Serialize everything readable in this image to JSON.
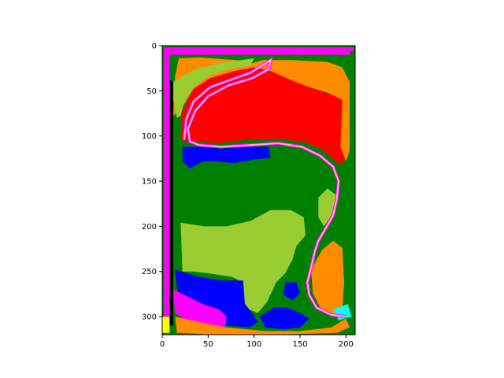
{
  "chart_data": {
    "type": "heatmap",
    "title": "",
    "xlabel": "",
    "ylabel": "",
    "xlim": [
      0,
      210
    ],
    "ylim": [
      320,
      0
    ],
    "x_ticks": [
      0,
      50,
      100,
      150,
      200
    ],
    "y_ticks": [
      0,
      50,
      100,
      150,
      200,
      250,
      300
    ],
    "grid": false,
    "colors": {
      "red": "#ff0000",
      "dark_green": "#008000",
      "yellow_green": "#9acd32",
      "orange": "#ff8c00",
      "blue": "#0000ff",
      "magenta": "#ff00ff",
      "cyan": "#00ffff",
      "black": "#000000",
      "yellow": "#ffff00",
      "pink": "#ffb6c1"
    },
    "regions": [
      {
        "label": "red",
        "polygon": [
          [
            20,
            102
          ],
          [
            22,
            72
          ],
          [
            34,
            48
          ],
          [
            52,
            36
          ],
          [
            78,
            28
          ],
          [
            100,
            24
          ],
          [
            118,
            27
          ],
          [
            140,
            36
          ],
          [
            158,
            45
          ],
          [
            178,
            52
          ],
          [
            196,
            58
          ],
          [
            203,
            68
          ],
          [
            202,
            124
          ],
          [
            193,
            132
          ],
          [
            176,
            116
          ],
          [
            156,
            107
          ],
          [
            128,
            103
          ],
          [
            92,
            104
          ],
          [
            62,
            108
          ],
          [
            40,
            106
          ],
          [
            24,
            106
          ]
        ]
      },
      {
        "label": "orange",
        "polygon": [
          [
            12,
            78
          ],
          [
            14,
            34
          ],
          [
            18,
            14
          ],
          [
            40,
            13
          ],
          [
            80,
            16
          ],
          [
            96,
            20
          ],
          [
            110,
            16
          ],
          [
            140,
            16
          ],
          [
            180,
            18
          ],
          [
            196,
            24
          ],
          [
            204,
            40
          ],
          [
            204,
            116
          ],
          [
            200,
            128
          ],
          [
            194,
            112
          ],
          [
            196,
            60
          ],
          [
            180,
            52
          ],
          [
            160,
            46
          ],
          [
            140,
            38
          ],
          [
            118,
            28
          ],
          [
            100,
            24
          ],
          [
            78,
            28
          ],
          [
            52,
            36
          ],
          [
            34,
            48
          ],
          [
            22,
            68
          ]
        ]
      },
      {
        "label": "yellow_green",
        "polygon": [
          [
            12,
            40
          ],
          [
            36,
            26
          ],
          [
            70,
            18
          ],
          [
            100,
            14
          ],
          [
            96,
            22
          ],
          [
            72,
            26
          ],
          [
            50,
            34
          ],
          [
            34,
            46
          ],
          [
            24,
            62
          ],
          [
            20,
            78
          ],
          [
            16,
            80
          ],
          [
            12,
            60
          ]
        ]
      },
      {
        "label": "dark_green",
        "polygon": [
          [
            20,
            112
          ],
          [
            40,
            110
          ],
          [
            70,
            112
          ],
          [
            104,
            110
          ],
          [
            134,
            112
          ],
          [
            154,
            114
          ],
          [
            170,
            120
          ],
          [
            186,
            132
          ],
          [
            192,
            146
          ],
          [
            190,
            166
          ],
          [
            186,
            186
          ],
          [
            180,
            206
          ],
          [
            170,
            222
          ],
          [
            166,
            238
          ],
          [
            158,
            250
          ],
          [
            154,
            270
          ],
          [
            140,
            286
          ],
          [
            126,
            288
          ],
          [
            118,
            262
          ],
          [
            126,
            236
          ],
          [
            128,
            220
          ],
          [
            112,
            216
          ],
          [
            86,
            208
          ],
          [
            60,
            200
          ],
          [
            22,
            196
          ]
        ]
      },
      {
        "label": "yellow_green",
        "polygon": [
          [
            20,
            196
          ],
          [
            46,
            200
          ],
          [
            70,
            200
          ],
          [
            96,
            194
          ],
          [
            118,
            182
          ],
          [
            140,
            182
          ],
          [
            154,
            190
          ],
          [
            156,
            210
          ],
          [
            146,
            222
          ],
          [
            142,
            236
          ],
          [
            134,
            252
          ],
          [
            124,
            262
          ],
          [
            114,
            284
          ],
          [
            104,
            296
          ],
          [
            90,
            290
          ],
          [
            88,
            262
          ],
          [
            76,
            256
          ],
          [
            50,
            252
          ],
          [
            34,
            250
          ],
          [
            22,
            250
          ]
        ]
      },
      {
        "label": "blue",
        "polygon": [
          [
            22,
            112
          ],
          [
            42,
            112
          ],
          [
            64,
            114
          ],
          [
            90,
            112
          ],
          [
            116,
            112
          ],
          [
            118,
            124
          ],
          [
            100,
            126
          ],
          [
            78,
            130
          ],
          [
            58,
            128
          ],
          [
            44,
            128
          ],
          [
            30,
            136
          ],
          [
            22,
            128
          ]
        ]
      },
      {
        "label": "blue",
        "polygon": [
          [
            14,
            248
          ],
          [
            40,
            256
          ],
          [
            66,
            260
          ],
          [
            88,
            260
          ],
          [
            90,
            286
          ],
          [
            98,
            296
          ],
          [
            104,
            306
          ],
          [
            96,
            312
          ],
          [
            70,
            310
          ],
          [
            54,
            298
          ],
          [
            36,
            290
          ],
          [
            22,
            286
          ],
          [
            16,
            268
          ]
        ]
      },
      {
        "label": "blue",
        "polygon": [
          [
            106,
            300
          ],
          [
            122,
            290
          ],
          [
            136,
            290
          ],
          [
            150,
            296
          ],
          [
            160,
            302
          ],
          [
            150,
            312
          ],
          [
            132,
            314
          ],
          [
            112,
            312
          ]
        ]
      },
      {
        "label": "blue",
        "polygon": [
          [
            134,
            262
          ],
          [
            146,
            262
          ],
          [
            150,
            274
          ],
          [
            142,
            282
          ],
          [
            132,
            276
          ]
        ]
      },
      {
        "label": "magenta",
        "polygon": [
          [
            12,
            270
          ],
          [
            28,
            278
          ],
          [
            44,
            286
          ],
          [
            62,
            292
          ],
          [
            70,
            300
          ],
          [
            68,
            312
          ],
          [
            46,
            310
          ],
          [
            26,
            304
          ],
          [
            14,
            296
          ]
        ]
      },
      {
        "label": "orange",
        "polygon": [
          [
            162,
            248
          ],
          [
            174,
            226
          ],
          [
            186,
            216
          ],
          [
            196,
            224
          ],
          [
            198,
            262
          ],
          [
            196,
            292
          ],
          [
            188,
            300
          ],
          [
            174,
            294
          ],
          [
            164,
            274
          ]
        ]
      },
      {
        "label": "yellow_green",
        "polygon": [
          [
            170,
            168
          ],
          [
            180,
            158
          ],
          [
            190,
            166
          ],
          [
            186,
            186
          ],
          [
            176,
            200
          ],
          [
            170,
            190
          ]
        ]
      },
      {
        "label": "orange",
        "polygon": [
          [
            14,
            300
          ],
          [
            40,
            306
          ],
          [
            70,
            312
          ],
          [
            112,
            316
          ],
          [
            150,
            316
          ],
          [
            184,
            312
          ],
          [
            200,
            302
          ],
          [
            204,
            312
          ],
          [
            190,
            318
          ],
          [
            120,
            320
          ],
          [
            60,
            320
          ],
          [
            16,
            318
          ]
        ]
      },
      {
        "label": "black",
        "polygon": [
          [
            8,
            38
          ],
          [
            12,
            40
          ],
          [
            12,
            310
          ],
          [
            8,
            310
          ]
        ]
      },
      {
        "label": "magenta",
        "polygon": [
          [
            2,
            2
          ],
          [
            208,
            2
          ],
          [
            208,
            10
          ],
          [
            2,
            10
          ]
        ]
      },
      {
        "label": "magenta",
        "polygon": [
          [
            2,
            2
          ],
          [
            8,
            2
          ],
          [
            8,
            300
          ],
          [
            2,
            300
          ]
        ]
      },
      {
        "label": "dark_green",
        "polygon": [
          [
            204,
            6
          ],
          [
            210,
            6
          ],
          [
            210,
            316
          ],
          [
            204,
            316
          ]
        ]
      },
      {
        "label": "cyan",
        "polygon": [
          [
            186,
            292
          ],
          [
            202,
            286
          ],
          [
            206,
            300
          ],
          [
            192,
            304
          ]
        ]
      },
      {
        "label": "yellow",
        "polygon": [
          [
            0,
            300
          ],
          [
            8,
            300
          ],
          [
            8,
            318
          ],
          [
            0,
            318
          ]
        ]
      }
    ],
    "boundary": [
      [
        24,
        104
      ],
      [
        26,
        82
      ],
      [
        34,
        62
      ],
      [
        52,
        46
      ],
      [
        74,
        38
      ],
      [
        96,
        30
      ],
      [
        112,
        20
      ],
      [
        118,
        16
      ],
      [
        116,
        26
      ],
      [
        98,
        36
      ],
      [
        72,
        44
      ],
      [
        50,
        56
      ],
      [
        36,
        72
      ],
      [
        28,
        92
      ],
      [
        30,
        106
      ],
      [
        40,
        110
      ],
      [
        64,
        112
      ],
      [
        96,
        110
      ],
      [
        126,
        108
      ],
      [
        152,
        112
      ],
      [
        172,
        122
      ],
      [
        186,
        134
      ],
      [
        192,
        150
      ],
      [
        190,
        170
      ],
      [
        186,
        188
      ],
      [
        178,
        202
      ],
      [
        170,
        216
      ],
      [
        166,
        228
      ],
      [
        162,
        246
      ],
      [
        158,
        262
      ],
      [
        160,
        276
      ],
      [
        168,
        290
      ],
      [
        184,
        298
      ],
      [
        200,
        300
      ]
    ]
  }
}
